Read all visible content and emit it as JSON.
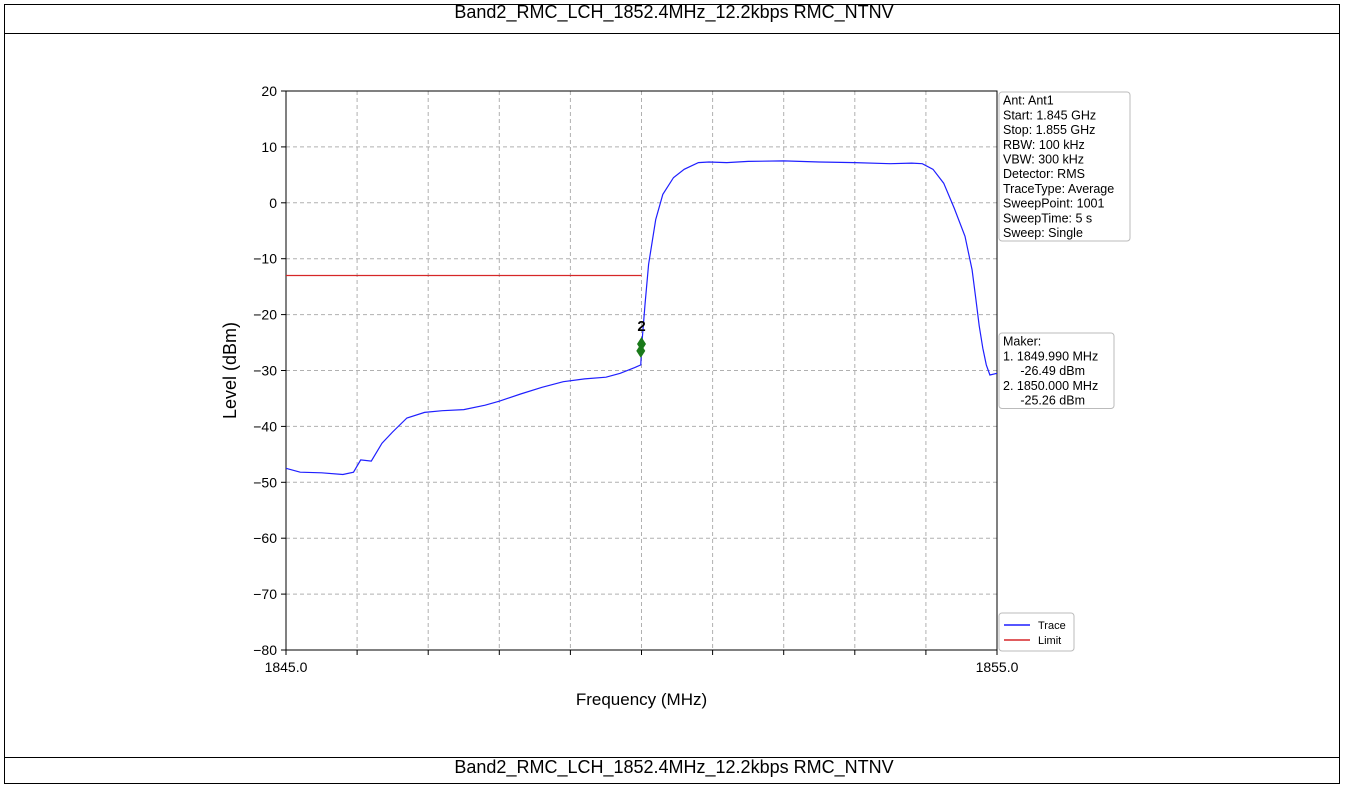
{
  "header_title": "Band2_RMC_LCH_1852.4MHz_12.2kbps RMC_NTNV",
  "footer_title": "Band2_RMC_LCH_1852.4MHz_12.2kbps RMC_NTNV",
  "colors": {
    "trace": "#1f1fff",
    "limit": "#d62728",
    "marker": "#1a7a1a",
    "grid": "#b0b0b0"
  },
  "chart_data": {
    "type": "line",
    "title": "",
    "xlabel": "Frequency (MHz)",
    "ylabel": "Level (dBm)",
    "xlim": [
      1845.0,
      1855.0
    ],
    "ylim": [
      -80,
      20
    ],
    "x_tick_labels": [
      "1845.0",
      "1855.0"
    ],
    "x_grid_count": 10,
    "y_ticks": [
      20,
      10,
      0,
      -10,
      -20,
      -30,
      -40,
      -50,
      -60,
      -70,
      -80
    ],
    "grid": true,
    "series": [
      {
        "name": "Trace",
        "x": [
          1845.0,
          1845.2,
          1845.5,
          1845.8,
          1845.95,
          1846.05,
          1846.2,
          1846.35,
          1846.5,
          1846.7,
          1846.95,
          1847.2,
          1847.5,
          1847.8,
          1848.0,
          1848.3,
          1848.6,
          1848.9,
          1849.2,
          1849.5,
          1849.7,
          1849.9,
          1849.99,
          1850.0,
          1850.05,
          1850.1,
          1850.2,
          1850.3,
          1850.45,
          1850.6,
          1850.8,
          1850.95,
          1851.2,
          1851.5,
          1852.0,
          1852.5,
          1853.0,
          1853.5,
          1853.8,
          1853.95,
          1854.1,
          1854.25,
          1854.4,
          1854.55,
          1854.65,
          1854.7,
          1854.75,
          1854.8,
          1854.85,
          1854.9,
          1855.0
        ],
        "y": [
          -47.5,
          -48.2,
          -48.3,
          -48.6,
          -48.2,
          -46.0,
          -46.2,
          -43.0,
          -41.0,
          -38.5,
          -37.5,
          -37.2,
          -37.0,
          -36.2,
          -35.5,
          -34.2,
          -33.0,
          -32.0,
          -31.5,
          -31.2,
          -30.5,
          -29.5,
          -29.0,
          -26.0,
          -18.0,
          -11.0,
          -3.0,
          1.5,
          4.5,
          6.0,
          7.2,
          7.3,
          7.2,
          7.4,
          7.5,
          7.3,
          7.2,
          7.0,
          7.1,
          7.0,
          6.0,
          3.5,
          -1.0,
          -6.0,
          -12.0,
          -17.0,
          -22.0,
          -26.0,
          -29.0,
          -30.8,
          -30.5
        ]
      },
      {
        "name": "Limit",
        "x": [
          1845.0,
          1850.0
        ],
        "y": [
          -13.0,
          -13.0
        ]
      }
    ],
    "markers": [
      {
        "label": "2",
        "x": 1850.0,
        "y": -25.26
      },
      {
        "label": "",
        "x": 1849.99,
        "y": -26.49
      }
    ],
    "legend_position": "lower-right"
  },
  "info_box": {
    "lines": [
      "Ant: Ant1",
      "Start: 1.845 GHz",
      "Stop: 1.855 GHz",
      "RBW: 100 kHz",
      "VBW: 300 kHz",
      "Detector: RMS",
      "TraceType: Average",
      "SweepPoint: 1001",
      "SweepTime: 5 s",
      "Sweep: Single"
    ]
  },
  "marker_box": {
    "lines": [
      "Maker:",
      "1. 1849.990 MHz",
      "     -26.49 dBm",
      "2. 1850.000 MHz",
      "     -25.26 dBm"
    ]
  }
}
